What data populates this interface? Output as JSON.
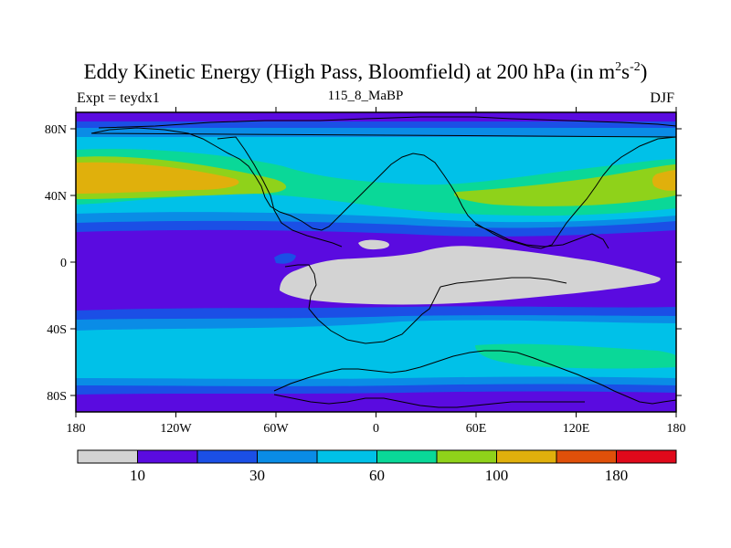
{
  "title": {
    "main": "Eddy Kinetic Energy (High Pass, Bloomfield) at 200 hPa (in m",
    "sup1": "2",
    "mid": "s",
    "sup2": "-2",
    "close": ")"
  },
  "subtitle": {
    "left": "Expt = teydx1",
    "center": "115_8_MaBP",
    "right": "DJF"
  },
  "axes": {
    "x_labels": [
      "180",
      "120W",
      "60W",
      "0",
      "60E",
      "120E",
      "180"
    ],
    "y_labels": [
      "80N",
      "40N",
      "0",
      "40S",
      "80S"
    ]
  },
  "colorbar": {
    "colors": [
      "#d3d3d3",
      "#5a0be0",
      "#1b4fe6",
      "#0a8ce6",
      "#00c1e8",
      "#0ad898",
      "#8fd21a",
      "#e0b00c",
      "#e0500a",
      "#e0091b"
    ],
    "labels": [
      {
        "text": "10",
        "boundary": 1
      },
      {
        "text": "30",
        "boundary": 3
      },
      {
        "text": "60",
        "boundary": 5
      },
      {
        "text": "100",
        "boundary": 7
      },
      {
        "text": "180",
        "boundary": 9
      }
    ]
  },
  "chart_data": {
    "type": "heatmap",
    "title": "Eddy Kinetic Energy (High Pass, Bloomfield) at 200 hPa (in m^2 s^-2)",
    "experiment": "teydx1",
    "period": "115_8_MaBP",
    "season": "DJF",
    "x_range": [
      -180,
      180
    ],
    "y_range": [
      -90,
      90
    ],
    "levels": [
      10,
      30,
      60,
      100,
      180
    ],
    "level_scale": "contour level intervals (10 color bins)"
  }
}
